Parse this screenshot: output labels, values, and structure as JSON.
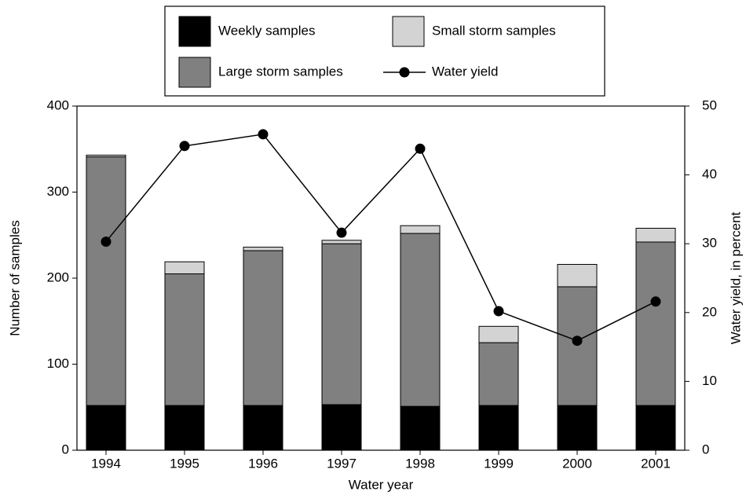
{
  "chart_data": {
    "type": "bar",
    "stacked": true,
    "x_label": "Water year",
    "y_label": "Number of samples",
    "y2_label": "Water yield, in percent",
    "categories": [
      "1994",
      "1995",
      "1996",
      "1997",
      "1998",
      "1999",
      "2000",
      "2001"
    ],
    "series": [
      {
        "name": "Weekly samples",
        "color": "#000000",
        "values": [
          52,
          52,
          52,
          53,
          51,
          52,
          52,
          52
        ]
      },
      {
        "name": "Large storm samples",
        "color": "#808080",
        "values": [
          289,
          153,
          180,
          187,
          201,
          73,
          138,
          190
        ]
      },
      {
        "name": "Small storm samples",
        "color": "#d3d3d3",
        "values": [
          2,
          14,
          4,
          4,
          9,
          19,
          26,
          16
        ]
      },
      {
        "name": "Water yield",
        "color": "#000000",
        "type": "line",
        "axis": "y2",
        "values": [
          30.3,
          44.2,
          45.9,
          31.6,
          43.8,
          20.2,
          15.9,
          21.6
        ]
      }
    ],
    "ylim": [
      0,
      400
    ],
    "yticks": [
      0,
      100,
      200,
      300,
      400
    ],
    "y2lim": [
      0,
      50
    ],
    "y2ticks": [
      0,
      10,
      20,
      30,
      40,
      50
    ],
    "grid": false,
    "legend": "top"
  }
}
